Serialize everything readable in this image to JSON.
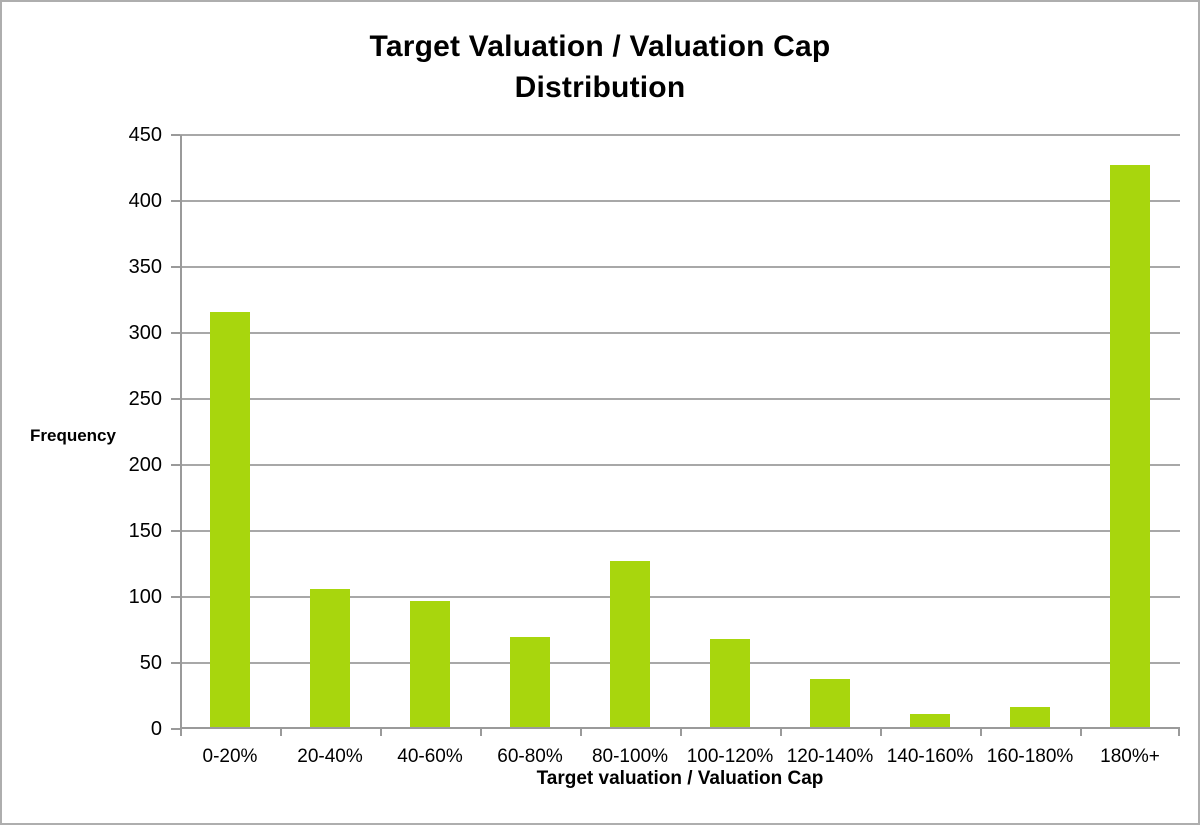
{
  "chart_data": {
    "type": "bar",
    "title": "Target Valuation / Valuation Cap Distribution",
    "title_lines": [
      "Target Valuation / Valuation Cap",
      "Distribution"
    ],
    "categories": [
      "0-20%",
      "20-40%",
      "40-60%",
      "60-80%",
      "80-100%",
      "100-120%",
      "120-140%",
      "140-160%",
      "160-180%",
      "180%+"
    ],
    "values": [
      316,
      106,
      97,
      70,
      127,
      68,
      38,
      11,
      17,
      427
    ],
    "xlabel": "Target valuation / Valuation Cap",
    "ylabel": "Frequency",
    "ylim": [
      0,
      450
    ],
    "yticks": [
      0,
      50,
      100,
      150,
      200,
      250,
      300,
      350,
      400,
      450
    ],
    "grid": true,
    "legend_position": "none",
    "bar_color": "#a8d60d",
    "gridline_color": "#a8a8a8",
    "axis_color": "#9a9a9a",
    "text_color": "#000000",
    "background_color": "#ffffff",
    "border_color": "#aeaeae"
  }
}
